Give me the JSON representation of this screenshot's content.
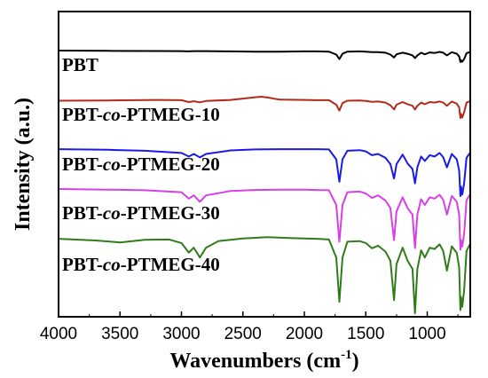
{
  "chart_data": {
    "type": "line",
    "title": "",
    "xlabel": "Wavenumbers (cm",
    "xlabel_sup": "-1",
    "xlabel_close": ")",
    "ylabel": "Intensity (a.u.)",
    "xlim": [
      4000,
      650
    ],
    "x_ticks": [
      4000,
      3500,
      3000,
      2500,
      2000,
      1500,
      1000
    ],
    "x_tick_labels": [
      "4000",
      "3500",
      "3000",
      "2500",
      "2000",
      "1500",
      "1000"
    ],
    "y_ticks_shown": false,
    "series": [
      {
        "name": "PBT",
        "label_parts": [
          {
            "t": "PBT",
            "i": false
          }
        ],
        "color": "#000000",
        "x": [
          4000,
          3600,
          3200,
          3000,
          2950,
          2900,
          2800,
          2600,
          2400,
          2200,
          2000,
          1900,
          1800,
          1740,
          1715,
          1690,
          1650,
          1550,
          1500,
          1450,
          1400,
          1340,
          1300,
          1270,
          1250,
          1200,
          1160,
          1120,
          1100,
          1080,
          1050,
          1020,
          980,
          940,
          900,
          870,
          840,
          800,
          760,
          740,
          730,
          725,
          715,
          700,
          680,
          650
        ],
        "y": [
          0,
          0.1,
          0.15,
          0.2,
          0.3,
          0.2,
          0.2,
          0.3,
          0.4,
          0.4,
          0.3,
          0.3,
          0.4,
          1.5,
          3.2,
          1.2,
          0.4,
          0.3,
          0.4,
          0.6,
          0.6,
          0.8,
          1.5,
          2.6,
          1.4,
          0.8,
          1.2,
          1.8,
          2.8,
          1.8,
          0.8,
          1.4,
          0.7,
          0.9,
          0.5,
          0.8,
          1.8,
          0.6,
          1.2,
          2.2,
          4.3,
          3.6,
          4.2,
          3.2,
          1.0,
          0.5
        ]
      },
      {
        "name": "PBT-co-PTMEG-10",
        "label_parts": [
          {
            "t": "PBT-",
            "i": false
          },
          {
            "t": "co",
            "i": true
          },
          {
            "t": "-PTMEG-10",
            "i": false
          }
        ],
        "color": "#b22a1a",
        "x": [
          4000,
          3600,
          3200,
          3000,
          2940,
          2900,
          2850,
          2800,
          2600,
          2400,
          2350,
          2300,
          2200,
          2000,
          1900,
          1800,
          1740,
          1715,
          1690,
          1650,
          1550,
          1500,
          1450,
          1400,
          1340,
          1300,
          1270,
          1250,
          1200,
          1160,
          1120,
          1100,
          1080,
          1050,
          1020,
          980,
          940,
          900,
          870,
          840,
          800,
          760,
          740,
          730,
          725,
          715,
          700,
          680,
          650
        ],
        "y": [
          0.5,
          0.4,
          0.2,
          0.3,
          1.0,
          0.7,
          1.1,
          0.6,
          0.2,
          -0.8,
          -1.0,
          -0.7,
          0.1,
          0.2,
          0.3,
          0.3,
          2.0,
          4.2,
          1.4,
          0.5,
          0.4,
          0.6,
          0.9,
          0.8,
          1.2,
          2.2,
          3.8,
          2.0,
          1.0,
          1.8,
          2.4,
          3.8,
          2.4,
          1.2,
          1.8,
          1.0,
          1.2,
          0.8,
          1.2,
          2.4,
          0.8,
          1.6,
          3.0,
          7.0,
          5.4,
          6.8,
          4.8,
          1.2,
          0.6
        ]
      },
      {
        "name": "PBT-co-PTMEG-20",
        "label_parts": [
          {
            "t": "PBT-",
            "i": false
          },
          {
            "t": "co",
            "i": true
          },
          {
            "t": "-PTMEG-20",
            "i": false
          }
        ],
        "color": "#1a1ae6",
        "x": [
          4000,
          3600,
          3300,
          3000,
          2940,
          2900,
          2850,
          2800,
          2600,
          2400,
          2200,
          2000,
          1900,
          1800,
          1740,
          1715,
          1690,
          1650,
          1550,
          1500,
          1450,
          1400,
          1340,
          1300,
          1270,
          1250,
          1200,
          1160,
          1120,
          1100,
          1080,
          1050,
          1020,
          980,
          940,
          900,
          870,
          840,
          800,
          760,
          740,
          730,
          725,
          715,
          700,
          680,
          650
        ],
        "y": [
          0.3,
          0.5,
          0.8,
          1.5,
          2.6,
          1.8,
          2.9,
          1.8,
          0.7,
          0.4,
          0.3,
          0.3,
          0.3,
          0.4,
          3.5,
          10.5,
          3.5,
          0.8,
          0.6,
          1.0,
          2.2,
          1.8,
          3.0,
          5.0,
          9.5,
          5.0,
          2.0,
          4.8,
          6.5,
          11.0,
          6.0,
          2.6,
          4.0,
          2.2,
          2.6,
          1.5,
          2.8,
          6.0,
          1.8,
          3.5,
          7.0,
          15.0,
          12.0,
          14.5,
          11.0,
          3.0,
          1.4
        ]
      },
      {
        "name": "PBT-co-PTMEG-30",
        "label_parts": [
          {
            "t": "PBT-",
            "i": false
          },
          {
            "t": "co",
            "i": true
          },
          {
            "t": "-PTMEG-30",
            "i": false
          }
        ],
        "color": "#d640e6",
        "x": [
          4000,
          3600,
          3300,
          3000,
          2940,
          2900,
          2850,
          2800,
          2600,
          2400,
          2200,
          2000,
          1900,
          1800,
          1740,
          1715,
          1690,
          1650,
          1550,
          1500,
          1450,
          1400,
          1340,
          1300,
          1270,
          1250,
          1200,
          1160,
          1120,
          1100,
          1080,
          1050,
          1020,
          980,
          940,
          900,
          870,
          840,
          800,
          760,
          740,
          730,
          725,
          715,
          700,
          680,
          650
        ],
        "y": [
          0,
          0.2,
          0.4,
          1.0,
          3.0,
          2.0,
          4.0,
          2.0,
          0.6,
          0.3,
          0.2,
          0.2,
          0.3,
          0.4,
          5.0,
          16.5,
          5.0,
          1.0,
          0.8,
          1.4,
          2.8,
          2.0,
          3.6,
          6.0,
          16.0,
          7.0,
          2.6,
          6.0,
          8.0,
          18.5,
          8.0,
          3.2,
          5.0,
          2.6,
          3.0,
          1.8,
          3.4,
          8.0,
          2.2,
          4.0,
          8.0,
          19.0,
          16.0,
          18.0,
          14.0,
          3.5,
          1.6
        ]
      },
      {
        "name": "PBT-co-PTMEG-40",
        "label_parts": [
          {
            "t": "PBT-",
            "i": false
          },
          {
            "t": "co",
            "i": true
          },
          {
            "t": "-PTMEG-40",
            "i": false
          }
        ],
        "color": "#2e7d18",
        "x": [
          4000,
          3700,
          3500,
          3300,
          3100,
          3000,
          2940,
          2900,
          2850,
          2800,
          2700,
          2500,
          2300,
          2100,
          2000,
          1900,
          1800,
          1740,
          1715,
          1690,
          1650,
          1550,
          1500,
          1450,
          1400,
          1340,
          1300,
          1270,
          1250,
          1200,
          1160,
          1120,
          1100,
          1080,
          1050,
          1020,
          980,
          940,
          900,
          870,
          840,
          800,
          760,
          740,
          730,
          725,
          715,
          700,
          680,
          650
        ],
        "y": [
          0.3,
          0.8,
          1.4,
          0.6,
          0.5,
          1.6,
          4.5,
          3.0,
          6.0,
          3.0,
          1.0,
          0.2,
          -0.2,
          0.1,
          0.2,
          0.3,
          0.5,
          6.0,
          19.5,
          6.0,
          1.2,
          1.0,
          1.6,
          3.2,
          2.4,
          4.2,
          7.0,
          19.0,
          8.0,
          3.0,
          7.0,
          9.5,
          23.0,
          9.5,
          3.8,
          6.0,
          3.0,
          3.4,
          2.0,
          4.0,
          10.0,
          2.6,
          4.6,
          9.0,
          22.0,
          18.0,
          21.0,
          16.0,
          4.0,
          1.8
        ]
      }
    ]
  }
}
